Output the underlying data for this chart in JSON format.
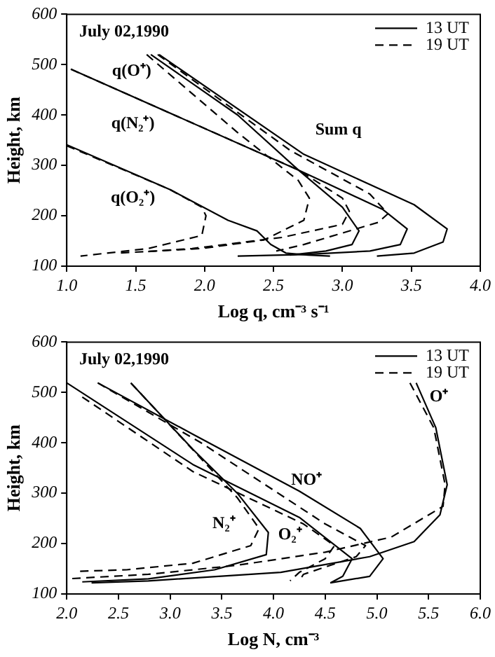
{
  "chart_data": [
    {
      "type": "line",
      "xlabel": "Log q, cm⁻³ s⁻¹",
      "ylabel": "Height, km",
      "legend": "top right",
      "xlim": [
        1,
        4
      ],
      "xticks": [
        {
          "value": 1,
          "label": "1.0"
        },
        {
          "value": 1.5,
          "label": "1.5"
        },
        {
          "value": 2,
          "label": "2.0"
        },
        {
          "value": 2.5,
          "label": "2.5"
        },
        {
          "value": 3,
          "label": "3.0"
        },
        {
          "value": 3.5,
          "label": "3.5"
        },
        {
          "value": 4,
          "label": "4.0"
        }
      ],
      "ylim": [
        100,
        600
      ],
      "yticks": [
        100,
        200,
        300,
        400,
        500,
        600
      ],
      "annotations": [
        "July 02,1990",
        "q(O⁺)",
        "q(N₂⁺)",
        "q(O₂⁺)",
        "Sum q"
      ],
      "series": [
        {
          "name": "13 UT",
          "color": "#000000",
          "line_style": "solid",
          "x": [
            1.61,
            2.24,
            2.68,
            3.0,
            3.12,
            3.07,
            2.88,
            2.62
          ],
          "values": [
            520,
            400,
            291,
            217,
            170,
            143,
            130,
            122
          ]
        },
        {
          "color": "#000000",
          "line_style": "solid",
          "x": [
            1.03,
            2.68,
            3.29,
            3.47,
            3.42,
            3.2,
            2.72,
            2.24
          ],
          "values": [
            491,
            291,
            213,
            174,
            143,
            130,
            123,
            120
          ]
        },
        {
          "color": "#000000",
          "line_style": "solid",
          "x": [
            1.0,
            1.75,
            2.17,
            2.38,
            2.48,
            2.59,
            2.75,
            2.91
          ],
          "values": [
            341,
            252,
            191,
            170,
            143,
            126,
            122,
            120
          ]
        },
        {
          "color": "#000000",
          "line_style": "solid",
          "x": [
            1.67,
            2.72,
            3.52,
            3.76,
            3.73,
            3.52,
            3.25
          ],
          "values": [
            520,
            322,
            222,
            174,
            148,
            126,
            120
          ]
        },
        {
          "name": "19 UT",
          "color": "#000000",
          "line_style": "dashed",
          "x": [
            1.58,
            2.24,
            2.68,
            2.76,
            2.72,
            2.43,
            1.98,
            1.37
          ],
          "values": [
            520,
            365,
            270,
            235,
            191,
            152,
            135,
            126
          ]
        },
        {
          "color": "#000000",
          "line_style": "dashed",
          "x": [
            1.03,
            2.68,
            3.0,
            3.05,
            3.0,
            2.56,
            1.91,
            1.59
          ],
          "values": [
            491,
            291,
            235,
            209,
            183,
            157,
            135,
            129
          ]
        },
        {
          "color": "#000000",
          "line_style": "dashed",
          "x": [
            1.0,
            1.75,
            1.98,
            2.01,
            1.98,
            1.59,
            1.1
          ],
          "values": [
            339,
            252,
            217,
            200,
            161,
            135,
            120
          ]
        },
        {
          "color": "#000000",
          "line_style": "dashed",
          "x": [
            1.66,
            2.62,
            3.2,
            3.33,
            3.26,
            2.72,
            2.52
          ],
          "values": [
            520,
            330,
            243,
            204,
            187,
            143,
            130
          ]
        }
      ]
    },
    {
      "type": "line",
      "xlabel": "Log N, cm⁻³",
      "ylabel": "Height, km",
      "legend": "top right",
      "xlim": [
        2,
        6
      ],
      "xticks": [
        {
          "value": 2,
          "label": "2.0"
        },
        {
          "value": 2.5,
          "label": "2.5"
        },
        {
          "value": 3,
          "label": "3.0"
        },
        {
          "value": 3.5,
          "label": "3.5"
        },
        {
          "value": 4,
          "label": "4.0"
        },
        {
          "value": 4.5,
          "label": "4.5"
        },
        {
          "value": 5,
          "label": "5.0"
        },
        {
          "value": 5.5,
          "label": "5.5"
        },
        {
          "value": 6,
          "label": "6.0"
        }
      ],
      "ylim": [
        100,
        600
      ],
      "yticks": [
        100,
        200,
        300,
        400,
        500,
        600
      ],
      "annotations": [
        "July 02,1990",
        "O⁺",
        "NO⁺",
        "N₂⁺",
        "O₂⁺"
      ],
      "series": [
        {
          "name": "13 UT",
          "color": "#000000",
          "line_style": "solid",
          "x": [
            5.38,
            5.57,
            5.68,
            5.61,
            5.36,
            4.93,
            4.07,
            2.79,
            2.24
          ],
          "values": [
            519,
            430,
            317,
            257,
            204,
            174,
            143,
            126,
            122
          ]
        },
        {
          "color": "#000000",
          "line_style": "solid",
          "x": [
            2.3,
            3.22,
            4.25,
            4.84,
            5.06,
            4.93,
            4.55
          ],
          "values": [
            519,
            417,
            304,
            230,
            170,
            135,
            122
          ]
        },
        {
          "color": "#000000",
          "line_style": "solid",
          "x": [
            2.0,
            3.22,
            4.25,
            4.76,
            4.67,
            4.55
          ],
          "values": [
            519,
            357,
            252,
            170,
            135,
            122
          ]
        },
        {
          "color": "#000000",
          "line_style": "solid",
          "x": [
            2.62,
            3.22,
            3.65,
            3.95,
            3.93,
            3.43,
            2.79,
            2.15
          ],
          "values": [
            519,
            387,
            300,
            222,
            178,
            148,
            130,
            124
          ]
        },
        {
          "name": "19 UT",
          "color": "#000000",
          "line_style": "dashed",
          "x": [
            5.32,
            5.55,
            5.66,
            5.64,
            5.14,
            4.5,
            3.65,
            2.79,
            2.0
          ],
          "values": [
            519,
            430,
            317,
            274,
            213,
            183,
            157,
            139,
            130
          ]
        },
        {
          "color": "#000000",
          "line_style": "dashed",
          "x": [
            2.3,
            3.3,
            4.5,
            4.89,
            4.8,
            4.29,
            4.25
          ],
          "values": [
            519,
            400,
            239,
            196,
            174,
            139,
            126
          ]
        },
        {
          "color": "#000000",
          "line_style": "dashed",
          "x": [
            2.15,
            3.22,
            4.29,
            4.59,
            4.5,
            4.25,
            4.16
          ],
          "values": [
            491,
            343,
            239,
            196,
            170,
            143,
            126
          ]
        },
        {
          "color": "#000000",
          "line_style": "dashed",
          "x": [
            2.62,
            3.65,
            3.86,
            3.78,
            3.22,
            2.58,
            2.11
          ],
          "values": [
            519,
            291,
            230,
            196,
            161,
            148,
            145
          ]
        }
      ]
    }
  ]
}
